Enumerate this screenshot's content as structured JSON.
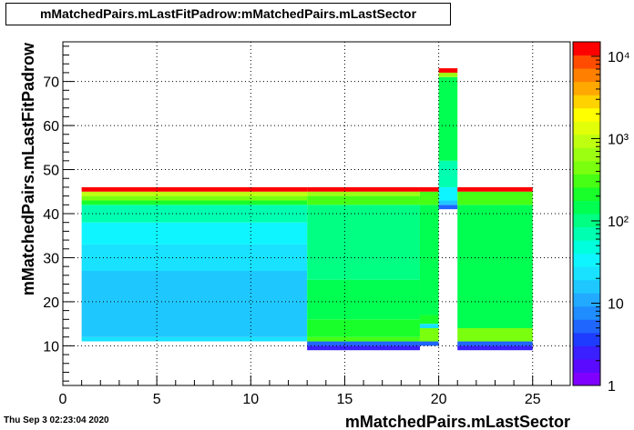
{
  "title": "mMatchedPairs.mLastFitPadrow:mMatchedPairs.mLastSector",
  "timestamp": "Thu Sep  3 02:23:04 2020",
  "chart_data": {
    "type": "heatmap",
    "title": "mMatchedPairs.mLastFitPadrow:mMatchedPairs.mLastSector",
    "xlabel": "mMatchedPairs.mLastSector",
    "ylabel": "mMatchedPairs.mLastFitPadrow",
    "xlim": [
      0,
      27
    ],
    "ylim": [
      1,
      79
    ],
    "xticks": [
      0,
      5,
      10,
      15,
      20,
      25
    ],
    "yticks": [
      10,
      20,
      30,
      40,
      50,
      60,
      70
    ],
    "zscale": "log",
    "zlim": [
      1,
      15000
    ],
    "zticks": [
      {
        "value": 1,
        "label": "1"
      },
      {
        "value": 10,
        "label": "10"
      },
      {
        "value": 100,
        "label": "10²"
      },
      {
        "value": 1000,
        "label": "10³"
      },
      {
        "value": 10000,
        "label": "10⁴"
      }
    ],
    "grid": true,
    "palette": [
      "#7f00ff",
      "#5a0aff",
      "#3a1fff",
      "#1e3cff",
      "#1f66ff",
      "#1f8cff",
      "#21aaff",
      "#1ec8ff",
      "#18e2ff",
      "#0ff5ff",
      "#00ffdc",
      "#00ffb0",
      "#00ff83",
      "#00ff50",
      "#18ff2a",
      "#47ff14",
      "#7aff0f",
      "#9cff12",
      "#bfff10",
      "#e2ff0a",
      "#ffff00",
      "#ffd200",
      "#ffa800",
      "#ff8000",
      "#ff4c00",
      "#ff0000"
    ],
    "cells": [
      {
        "x": [
          1,
          13
        ],
        "y": [
          11,
          12
        ],
        "z": 25
      },
      {
        "x": [
          1,
          13
        ],
        "y": [
          12,
          20
        ],
        "z": 14
      },
      {
        "x": [
          1,
          13
        ],
        "y": [
          20,
          27
        ],
        "z": 17
      },
      {
        "x": [
          1,
          13
        ],
        "y": [
          27,
          33
        ],
        "z": 22
      },
      {
        "x": [
          1,
          13
        ],
        "y": [
          33,
          38
        ],
        "z": 40
      },
      {
        "x": [
          1,
          13
        ],
        "y": [
          38,
          42
        ],
        "z": 70
      },
      {
        "x": [
          1,
          13
        ],
        "y": [
          42,
          43
        ],
        "z": 200
      },
      {
        "x": [
          1,
          13
        ],
        "y": [
          43,
          44
        ],
        "z": 500
      },
      {
        "x": [
          1,
          13
        ],
        "y": [
          44,
          45
        ],
        "z": 1000
      },
      {
        "x": [
          1,
          13
        ],
        "y": [
          45,
          46
        ],
        "z": 15000
      },
      {
        "x": [
          13,
          19
        ],
        "y": [
          9,
          10
        ],
        "z": 3
      },
      {
        "x": [
          13,
          19
        ],
        "y": [
          10,
          11
        ],
        "z": 6
      },
      {
        "x": [
          13,
          19
        ],
        "y": [
          11,
          12
        ],
        "z": 300
      },
      {
        "x": [
          13,
          19
        ],
        "y": [
          12,
          16
        ],
        "z": 250
      },
      {
        "x": [
          13,
          19
        ],
        "y": [
          16,
          25
        ],
        "z": 150
      },
      {
        "x": [
          13,
          19
        ],
        "y": [
          25,
          42
        ],
        "z": 120
      },
      {
        "x": [
          13,
          19
        ],
        "y": [
          42,
          44
        ],
        "z": 300
      },
      {
        "x": [
          13,
          19
        ],
        "y": [
          44,
          45
        ],
        "z": 700
      },
      {
        "x": [
          13,
          19
        ],
        "y": [
          45,
          46
        ],
        "z": 15000
      },
      {
        "x": [
          19,
          20
        ],
        "y": [
          10,
          11
        ],
        "z": 6
      },
      {
        "x": [
          19,
          20
        ],
        "y": [
          11,
          14
        ],
        "z": 400
      },
      {
        "x": [
          19,
          20
        ],
        "y": [
          14,
          15
        ],
        "z": 20
      },
      {
        "x": [
          19,
          20
        ],
        "y": [
          15,
          17
        ],
        "z": 200
      },
      {
        "x": [
          19,
          20
        ],
        "y": [
          17,
          42
        ],
        "z": 150
      },
      {
        "x": [
          19,
          20
        ],
        "y": [
          42,
          45
        ],
        "z": 300
      },
      {
        "x": [
          19,
          20
        ],
        "y": [
          45,
          46
        ],
        "z": 15000
      },
      {
        "x": [
          20,
          21
        ],
        "y": [
          41,
          42
        ],
        "z": 6
      },
      {
        "x": [
          20,
          21
        ],
        "y": [
          42,
          43
        ],
        "z": 15
      },
      {
        "x": [
          20,
          21
        ],
        "y": [
          43,
          46
        ],
        "z": 40
      },
      {
        "x": [
          20,
          21
        ],
        "y": [
          46,
          52
        ],
        "z": 60
      },
      {
        "x": [
          20,
          21
        ],
        "y": [
          52,
          71
        ],
        "z": 150
      },
      {
        "x": [
          20,
          21
        ],
        "y": [
          71,
          72
        ],
        "z": 700
      },
      {
        "x": [
          20,
          21
        ],
        "y": [
          72,
          73
        ],
        "z": 15000
      },
      {
        "x": [
          21,
          25
        ],
        "y": [
          9,
          10
        ],
        "z": 3
      },
      {
        "x": [
          21,
          25
        ],
        "y": [
          10,
          11
        ],
        "z": 6
      },
      {
        "x": [
          21,
          25
        ],
        "y": [
          11,
          14
        ],
        "z": 500
      },
      {
        "x": [
          21,
          25
        ],
        "y": [
          14,
          42
        ],
        "z": 150
      },
      {
        "x": [
          21,
          25
        ],
        "y": [
          42,
          45
        ],
        "z": 300
      },
      {
        "x": [
          21,
          25
        ],
        "y": [
          45,
          46
        ],
        "z": 15000
      }
    ]
  }
}
